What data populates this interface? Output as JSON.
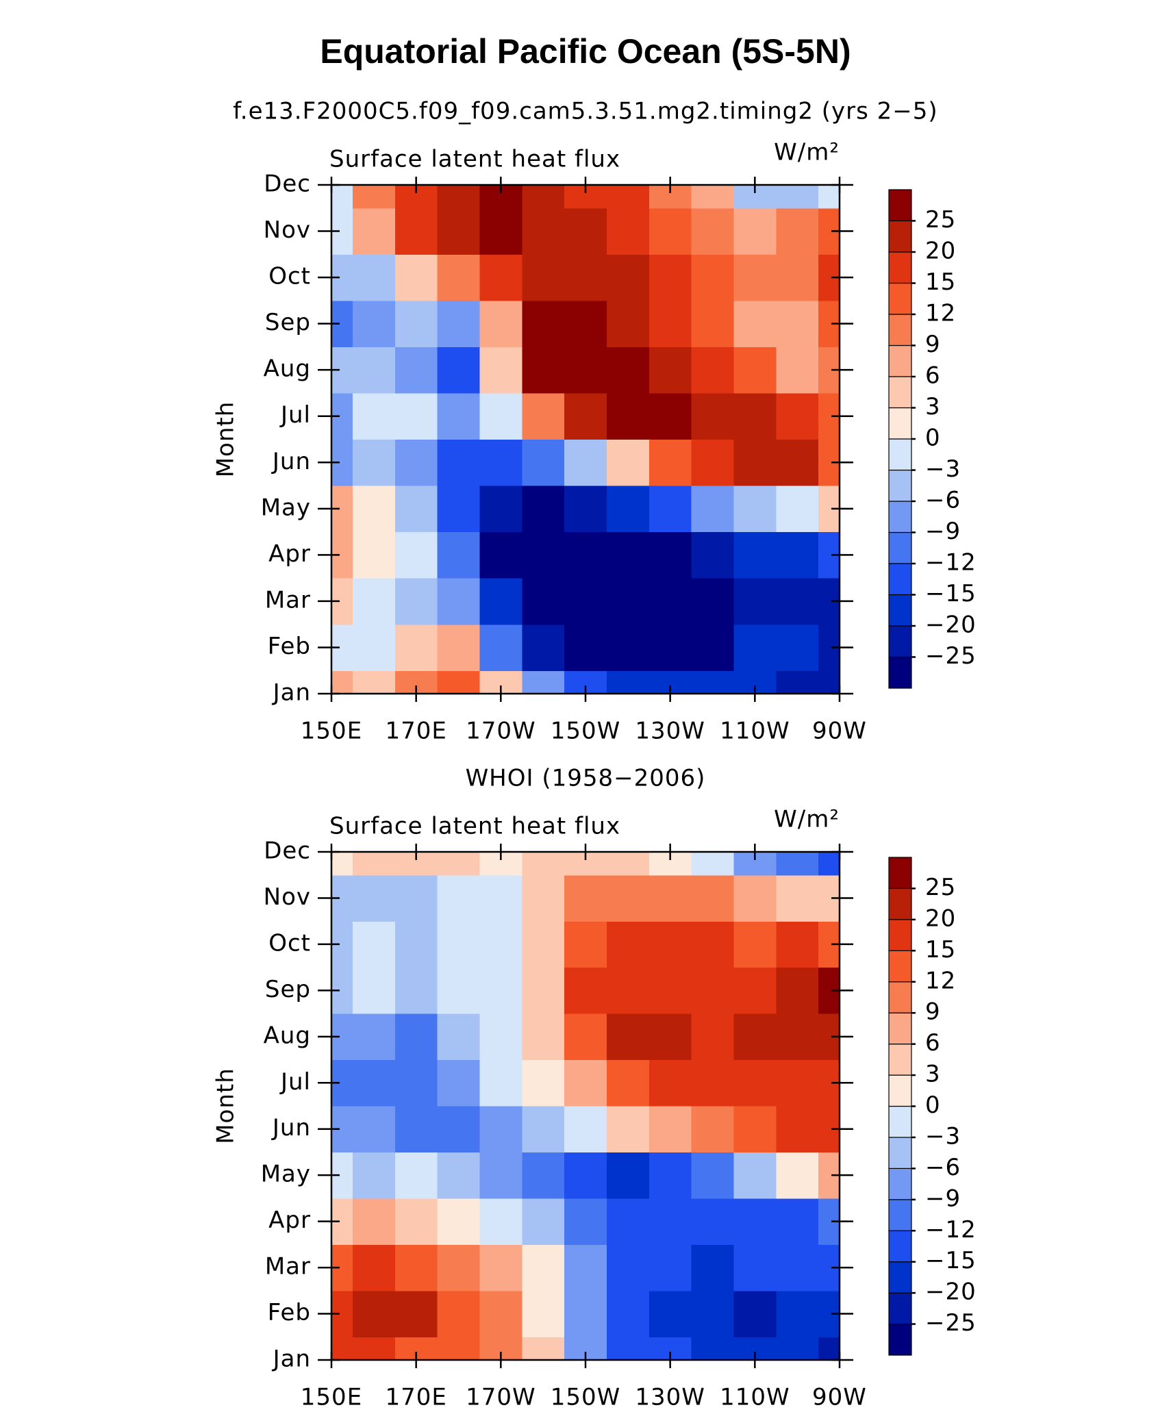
{
  "title": "Equatorial Pacific Ocean (5S-5N)",
  "chart_data": [
    {
      "type": "contour",
      "subtitle": "f.e13.F2000C5.f09_f09.cam5.3.51.mg2.timing2 (yrs 2−5)",
      "panel_title": "Surface latent heat flux",
      "units": "W/m²",
      "y_label": "Month",
      "x": [
        150,
        160,
        170,
        180,
        190,
        200,
        210,
        220,
        230,
        240,
        250,
        260,
        270
      ],
      "y": [
        1,
        2,
        3,
        4,
        5,
        6,
        7,
        8,
        9,
        10,
        11,
        12
      ],
      "z": [
        [
          6,
          3,
          9,
          12,
          3,
          -9,
          -15,
          -20,
          -20,
          -20,
          -20,
          -25,
          -25
        ],
        [
          -3,
          -3,
          3,
          6,
          -12,
          -25,
          -30,
          -30,
          -30,
          -28,
          -20,
          -20,
          -25
        ],
        [
          3,
          -3,
          -6,
          -9,
          -20,
          -30,
          -30,
          -30,
          -30,
          -30,
          -25,
          -25,
          -25
        ],
        [
          6,
          0,
          -3,
          -12,
          -30,
          -30,
          -30,
          -30,
          -28,
          -25,
          -20,
          -20,
          -15
        ],
        [
          6,
          0,
          -6,
          -15,
          -25,
          -28,
          -25,
          -20,
          -15,
          -9,
          -6,
          -3,
          3
        ],
        [
          -9,
          -6,
          -9,
          -15,
          -15,
          -12,
          -6,
          3,
          12,
          15,
          20,
          20,
          12
        ],
        [
          -9,
          -3,
          -3,
          -9,
          -3,
          9,
          20,
          25,
          26,
          20,
          20,
          15,
          12
        ],
        [
          -6,
          -6,
          -9,
          -15,
          3,
          25,
          26,
          25,
          20,
          15,
          12,
          6,
          9
        ],
        [
          -12,
          -9,
          -6,
          -9,
          6,
          25,
          26,
          20,
          15,
          12,
          6,
          6,
          12
        ],
        [
          -6,
          -6,
          3,
          9,
          15,
          20,
          20,
          20,
          15,
          12,
          9,
          9,
          15
        ],
        [
          -3,
          6,
          15,
          20,
          25,
          20,
          20,
          15,
          12,
          9,
          6,
          9,
          12
        ],
        [
          -3,
          9,
          15,
          20,
          25,
          20,
          15,
          15,
          9,
          6,
          -6,
          -6,
          -3
        ]
      ],
      "xlim": [
        150,
        270
      ],
      "ylim": [
        1,
        12
      ],
      "xticks": [
        {
          "value": 150,
          "label": "150E"
        },
        {
          "value": 170,
          "label": "170E"
        },
        {
          "value": 190,
          "label": "170W"
        },
        {
          "value": 210,
          "label": "150W"
        },
        {
          "value": 230,
          "label": "130W"
        },
        {
          "value": 250,
          "label": "110W"
        },
        {
          "value": 270,
          "label": "90W"
        }
      ],
      "yticks": [
        {
          "value": 1,
          "label": "Jan"
        },
        {
          "value": 2,
          "label": "Feb"
        },
        {
          "value": 3,
          "label": "Mar"
        },
        {
          "value": 4,
          "label": "Apr"
        },
        {
          "value": 5,
          "label": "May"
        },
        {
          "value": 6,
          "label": "Jun"
        },
        {
          "value": 7,
          "label": "Jul"
        },
        {
          "value": 8,
          "label": "Aug"
        },
        {
          "value": 9,
          "label": "Sep"
        },
        {
          "value": 10,
          "label": "Oct"
        },
        {
          "value": 11,
          "label": "Nov"
        },
        {
          "value": 12,
          "label": "Dec"
        }
      ],
      "levels": [
        {
          "value": -25,
          "label": "−25"
        },
        {
          "value": -20,
          "label": "−20"
        },
        {
          "value": -15,
          "label": "−15"
        },
        {
          "value": -12,
          "label": "−12"
        },
        {
          "value": -9,
          "label": "−9"
        },
        {
          "value": -6,
          "label": "−6"
        },
        {
          "value": -3,
          "label": "−3"
        },
        0,
        3,
        6,
        9,
        12,
        15,
        20,
        25
      ],
      "colors": [
        "#00007f",
        "#0019a6",
        "#0033cc",
        "#1f4ef0",
        "#4575f0",
        "#7399f5",
        "#a6c2f5",
        "#d5e6fa",
        "#fde9da",
        "#fcc8b0",
        "#fba888",
        "#f77c50",
        "#f45a2a",
        "#e03412",
        "#b82008",
        "#8b0000"
      ]
    },
    {
      "type": "contour",
      "subtitle": "WHOI (1958−2006)",
      "panel_title": "Surface latent heat flux",
      "units": "W/m²",
      "y_label": "Month",
      "x": [
        150,
        160,
        170,
        180,
        190,
        200,
        210,
        220,
        230,
        240,
        250,
        260,
        270
      ],
      "y": [
        1,
        2,
        3,
        4,
        5,
        6,
        7,
        8,
        9,
        10,
        11,
        12
      ],
      "z": [
        [
          15,
          15,
          12,
          12,
          9,
          3,
          -9,
          -15,
          -15,
          -20,
          -20,
          -20,
          -25
        ],
        [
          15,
          20,
          20,
          12,
          9,
          0,
          -9,
          -15,
          -20,
          -20,
          -25,
          -20,
          -20
        ],
        [
          12,
          15,
          12,
          9,
          6,
          0,
          -9,
          -15,
          -15,
          -20,
          -15,
          -15,
          -15
        ],
        [
          3,
          6,
          3,
          0,
          -3,
          -6,
          -12,
          -15,
          -15,
          -15,
          -15,
          -15,
          -12
        ],
        [
          -3,
          -6,
          -3,
          -6,
          -9,
          -12,
          -15,
          -20,
          -15,
          -12,
          -6,
          0,
          6
        ],
        [
          -9,
          -9,
          -12,
          -12,
          -9,
          -6,
          -3,
          3,
          6,
          9,
          12,
          15,
          15
        ],
        [
          -12,
          -12,
          -12,
          -9,
          -3,
          0,
          6,
          12,
          15,
          15,
          15,
          15,
          15
        ],
        [
          -9,
          -9,
          -12,
          -6,
          -3,
          3,
          12,
          20,
          20,
          15,
          20,
          20,
          20
        ],
        [
          -6,
          -3,
          -6,
          -3,
          -3,
          3,
          15,
          15,
          15,
          15,
          15,
          20,
          25
        ],
        [
          -6,
          -3,
          -6,
          -3,
          -3,
          3,
          12,
          15,
          15,
          15,
          12,
          15,
          12
        ],
        [
          -6,
          -6,
          -6,
          -3,
          -3,
          3,
          9,
          9,
          9,
          9,
          6,
          3,
          3
        ],
        [
          0,
          3,
          3,
          3,
          0,
          3,
          3,
          3,
          0,
          -3,
          -9,
          -12,
          -15
        ]
      ],
      "xlim": [
        150,
        270
      ],
      "ylim": [
        1,
        12
      ],
      "xticks": [
        {
          "value": 150,
          "label": "150E"
        },
        {
          "value": 170,
          "label": "170E"
        },
        {
          "value": 190,
          "label": "170W"
        },
        {
          "value": 210,
          "label": "150W"
        },
        {
          "value": 230,
          "label": "130W"
        },
        {
          "value": 250,
          "label": "110W"
        },
        {
          "value": 270,
          "label": "90W"
        }
      ],
      "yticks": [
        {
          "value": 1,
          "label": "Jan"
        },
        {
          "value": 2,
          "label": "Feb"
        },
        {
          "value": 3,
          "label": "Mar"
        },
        {
          "value": 4,
          "label": "Apr"
        },
        {
          "value": 5,
          "label": "May"
        },
        {
          "value": 6,
          "label": "Jun"
        },
        {
          "value": 7,
          "label": "Jul"
        },
        {
          "value": 8,
          "label": "Aug"
        },
        {
          "value": 9,
          "label": "Sep"
        },
        {
          "value": 10,
          "label": "Oct"
        },
        {
          "value": 11,
          "label": "Nov"
        },
        {
          "value": 12,
          "label": "Dec"
        }
      ],
      "levels": [
        {
          "value": -25,
          "label": "−25"
        },
        {
          "value": -20,
          "label": "−20"
        },
        {
          "value": -15,
          "label": "−15"
        },
        {
          "value": -12,
          "label": "−12"
        },
        {
          "value": -9,
          "label": "−9"
        },
        {
          "value": -6,
          "label": "−6"
        },
        {
          "value": -3,
          "label": "−3"
        },
        0,
        3,
        6,
        9,
        12,
        15,
        20,
        25
      ],
      "colors": [
        "#00007f",
        "#0019a6",
        "#0033cc",
        "#1f4ef0",
        "#4575f0",
        "#7399f5",
        "#a6c2f5",
        "#d5e6fa",
        "#fde9da",
        "#fcc8b0",
        "#fba888",
        "#f77c50",
        "#f45a2a",
        "#e03412",
        "#b82008",
        "#8b0000"
      ]
    }
  ]
}
